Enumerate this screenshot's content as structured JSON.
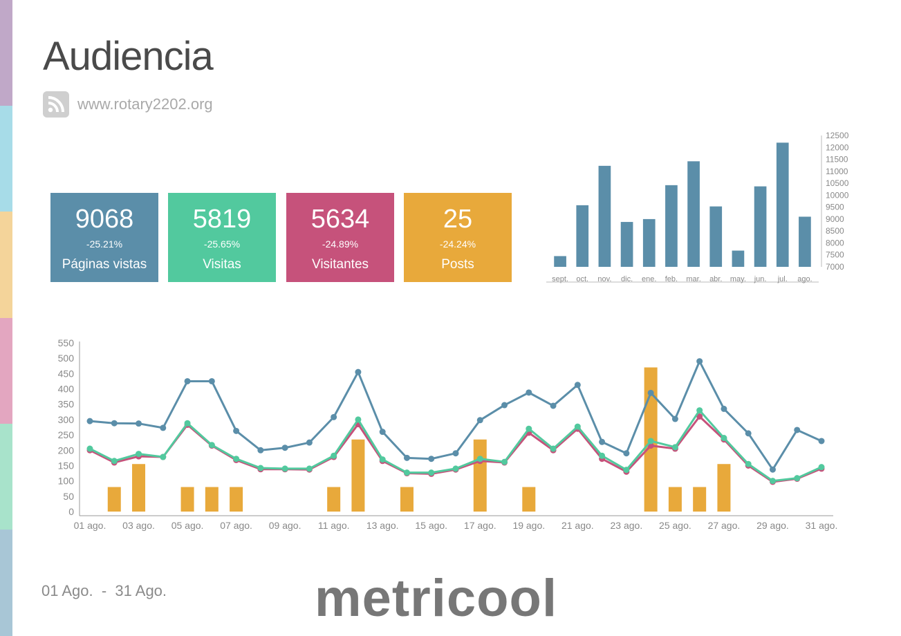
{
  "header": {
    "title": "Audiencia",
    "site_icon": "rss-icon",
    "site_url": "www.rotary2202.org"
  },
  "side_stripes": [
    "#c0a8c8",
    "#a7dce8",
    "#f4d49a",
    "#e3a6c0",
    "#a8e3cb",
    "#a8c6d6"
  ],
  "kpis": [
    {
      "value": "9068",
      "delta": "-25.21%",
      "label": "Páginas vistas",
      "color": "#5b8ea9"
    },
    {
      "value": "5819",
      "delta": "-25.65%",
      "label": "Visitas",
      "color": "#52c99e"
    },
    {
      "value": "5634",
      "delta": "-24.89%",
      "label": "Visitantes",
      "color": "#c6527b"
    },
    {
      "value": "25",
      "delta": "-24.24%",
      "label": "Posts",
      "color": "#e8a93b"
    }
  ],
  "chart_data": [
    {
      "type": "bar",
      "categories": [
        "sept.",
        "oct.",
        "nov.",
        "dic.",
        "ene.",
        "feb.",
        "mar.",
        "abr.",
        "may.",
        "jun.",
        "jul.",
        "ago."
      ],
      "values": [
        7450,
        9580,
        11230,
        8880,
        9000,
        10420,
        11420,
        9530,
        7680,
        10370,
        12200,
        9100
      ],
      "yticks": [
        7000,
        7500,
        8000,
        8500,
        9000,
        9500,
        10000,
        10500,
        11000,
        11500,
        12000,
        12500
      ],
      "ylim": [
        7000,
        12500
      ],
      "axis_side": "right",
      "color": "#5b8ea9"
    },
    {
      "type": "line",
      "categories": [
        "01 ago.",
        "02 ago.",
        "03 ago.",
        "04 ago.",
        "05 ago.",
        "06 ago.",
        "07 ago.",
        "08 ago.",
        "09 ago.",
        "10 ago.",
        "11 ago.",
        "12 ago.",
        "13 ago.",
        "14 ago.",
        "15 ago.",
        "16 ago.",
        "17 ago.",
        "18 ago.",
        "19 ago.",
        "20 ago.",
        "21 ago.",
        "22 ago.",
        "23 ago.",
        "24 ago.",
        "25 ago.",
        "26 ago.",
        "27 ago.",
        "28 ago.",
        "29 ago.",
        "30 ago.",
        "31 ago."
      ],
      "xtick_labels": [
        "01 ago.",
        "03 ago.",
        "05 ago.",
        "07 ago.",
        "09 ago.",
        "11 ago.",
        "13 ago.",
        "15 ago.",
        "17 ago.",
        "19 ago.",
        "21 ago.",
        "23 ago.",
        "25 ago.",
        "27 ago.",
        "29 ago.",
        "31 ago."
      ],
      "yticks": [
        0,
        50,
        100,
        150,
        200,
        250,
        300,
        350,
        400,
        450,
        500,
        550
      ],
      "ylim": [
        0,
        550
      ],
      "bars": {
        "color": "#e8a93b",
        "values": [
          0,
          80,
          155,
          0,
          80,
          80,
          80,
          0,
          0,
          0,
          80,
          235,
          0,
          80,
          0,
          0,
          235,
          0,
          80,
          0,
          0,
          0,
          0,
          470,
          80,
          80,
          155,
          0,
          0,
          0,
          0
        ]
      },
      "series": [
        {
          "color": "#5b8ea9",
          "values": [
            295,
            288,
            287,
            273,
            425,
            425,
            263,
            200,
            208,
            225,
            308,
            455,
            260,
            175,
            172,
            190,
            298,
            347,
            388,
            345,
            413,
            227,
            190,
            387,
            302,
            490,
            335,
            255,
            137,
            266,
            230
          ]
        },
        {
          "color": "#c6527b",
          "values": [
            200,
            160,
            180,
            178,
            283,
            215,
            168,
            138,
            138,
            137,
            178,
            285,
            165,
            125,
            123,
            137,
            165,
            160,
            257,
            200,
            270,
            172,
            130,
            215,
            205,
            310,
            235,
            150,
            97,
            107,
            140
          ]
        },
        {
          "color": "#52c99e",
          "values": [
            205,
            165,
            188,
            178,
            288,
            217,
            172,
            142,
            140,
            140,
            182,
            300,
            170,
            127,
            127,
            140,
            172,
            162,
            270,
            205,
            277,
            182,
            136,
            230,
            210,
            330,
            240,
            155,
            100,
            109,
            145
          ]
        }
      ]
    }
  ],
  "footer": {
    "date_range": "01 Ago.  -  31 Ago.",
    "logo_text": "metricool"
  }
}
